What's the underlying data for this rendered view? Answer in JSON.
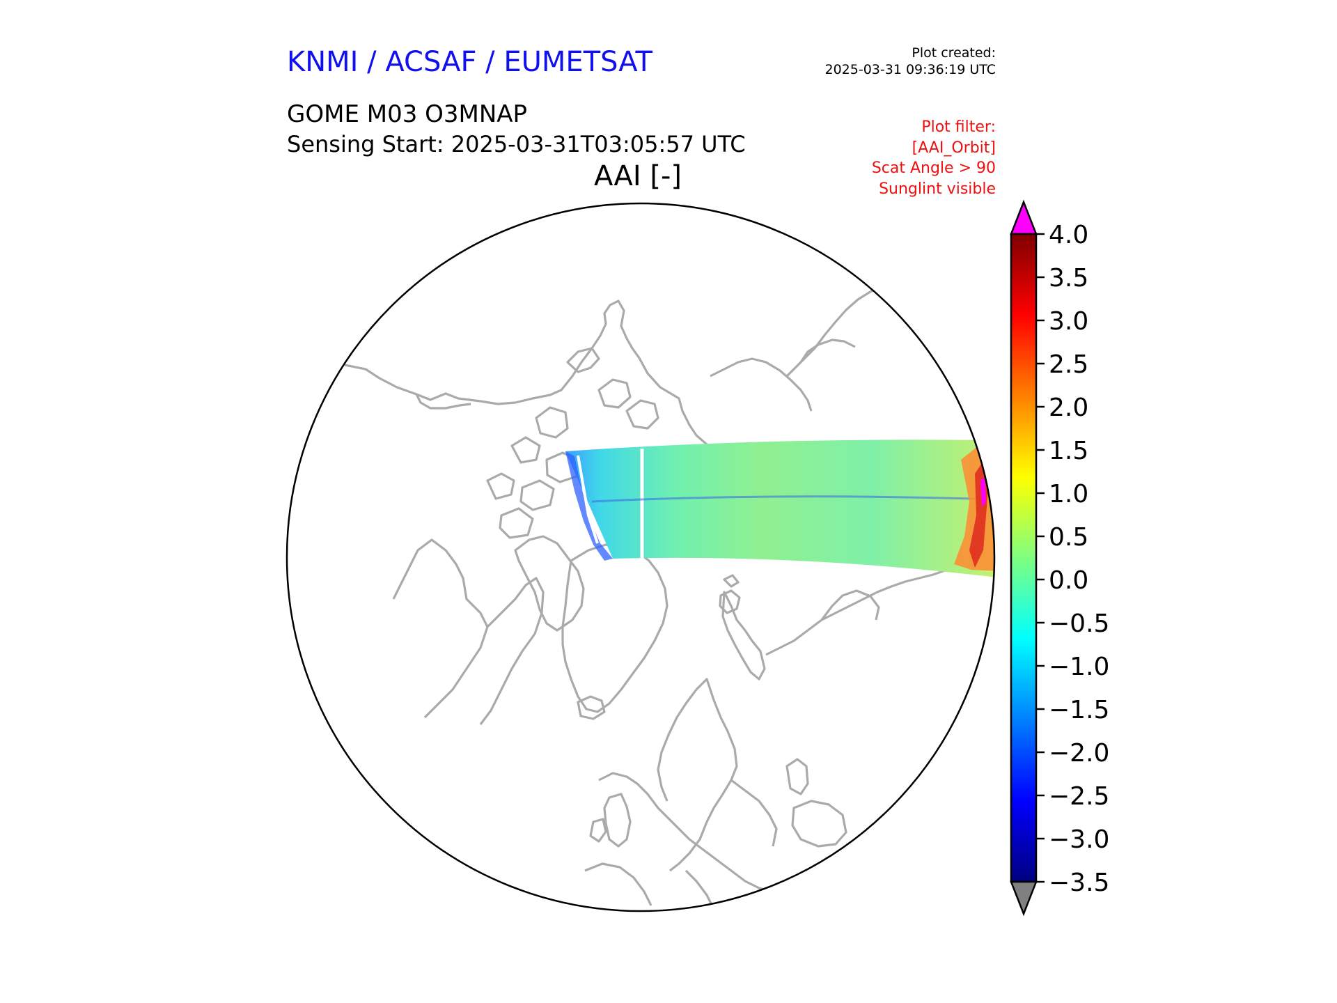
{
  "header": {
    "organizations": "KNMI / ACSAF / EUMETSAT",
    "plot_created_label": "Plot created:",
    "plot_created_time": "2025-03-31 09:36:19 UTC",
    "product": "GOME M03 O3MNAP",
    "sensing_start": "Sensing Start: 2025-03-31T03:05:57 UTC",
    "quantity": "AAI [-]"
  },
  "plot_filter": {
    "title": "Plot filter:",
    "lines": [
      "[AAI_Orbit]",
      "Scat Angle > 90",
      "Sunglint visible"
    ]
  },
  "map": {
    "projection": "north-polar-stereographic",
    "coastline_color": "#aaaaaa",
    "boundary_color": "#000000"
  },
  "colorbar": {
    "colormap": "jet",
    "min": -3.5,
    "max": 4.0,
    "over_color": "#ff00ff",
    "under_color": "#808080",
    "tick_labels": [
      "4.0",
      "3.5",
      "3.0",
      "2.5",
      "2.0",
      "1.5",
      "1.0",
      "0.5",
      "0.0",
      "−0.5",
      "−1.0",
      "−1.5",
      "−2.0",
      "−2.5",
      "−3.0",
      "−3.5"
    ]
  }
}
